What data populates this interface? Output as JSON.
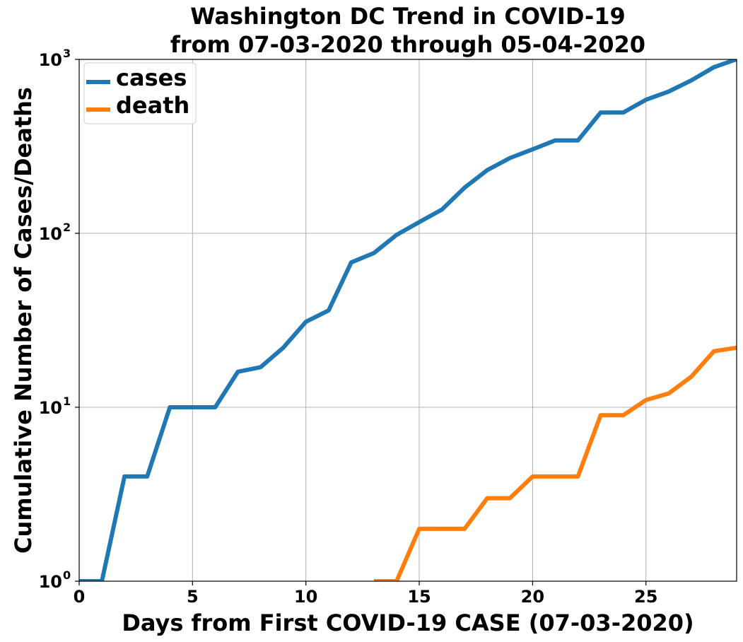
{
  "chart_data": {
    "type": "line",
    "title": [
      "Washington DC Trend in COVID-19",
      "from 07-03-2020 through 05-04-2020"
    ],
    "xlabel": "Days from First COVID-19 CASE (07-03-2020)",
    "ylabel": "Cumulative Number of Cases/Deaths",
    "xlim": [
      0,
      29
    ],
    "ylim": [
      1,
      1000
    ],
    "yscale": "log",
    "grid": true,
    "legend_position": "top-left",
    "x_ticks": [
      0,
      5,
      10,
      15,
      20,
      25
    ],
    "y_ticks": [
      {
        "value": 1,
        "base": "10",
        "exp": "0"
      },
      {
        "value": 10,
        "base": "10",
        "exp": "1"
      },
      {
        "value": 100,
        "base": "10",
        "exp": "2"
      },
      {
        "value": 1000,
        "base": "10",
        "exp": "3"
      }
    ],
    "series": [
      {
        "name": "cases",
        "color": "#1f77b4",
        "x": [
          0,
          1,
          2,
          3,
          4,
          5,
          6,
          7,
          8,
          9,
          10,
          11,
          12,
          13,
          14,
          15,
          16,
          17,
          18,
          19,
          20,
          21,
          22,
          23,
          24,
          25,
          26,
          27,
          28,
          29
        ],
        "values": [
          1,
          1,
          4,
          4,
          10,
          10,
          10,
          16,
          17,
          22,
          31,
          36,
          68,
          77,
          98,
          116,
          137,
          183,
          231,
          271,
          304,
          342,
          342,
          495,
          495,
          586,
          653,
          757,
          902,
          1002
        ]
      },
      {
        "name": "death",
        "color": "#ff7f0e",
        "x": [
          13,
          14,
          15,
          16,
          17,
          18,
          19,
          20,
          21,
          22,
          23,
          24,
          25,
          26,
          27,
          28,
          29
        ],
        "values": [
          1,
          1,
          2,
          2,
          2,
          3,
          3,
          4,
          4,
          4,
          9,
          9,
          11,
          12,
          15,
          21,
          22
        ]
      }
    ]
  }
}
